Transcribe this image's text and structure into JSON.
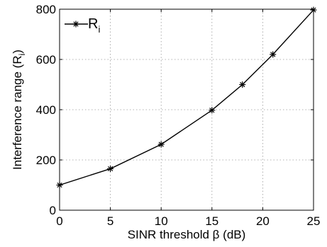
{
  "chart_data": {
    "type": "line",
    "title": "",
    "xlabel": "SINR threshold β (dB)",
    "ylabel": "Interference range (R",
    "ylabel_subscript": "i",
    "ylabel_suffix": ")",
    "xlim": [
      0,
      25
    ],
    "ylim": [
      0,
      800
    ],
    "xticks": [
      0,
      5,
      10,
      15,
      20,
      25
    ],
    "yticks": [
      0,
      200,
      400,
      600,
      800
    ],
    "grid": true,
    "legend_position": "top-left",
    "series": [
      {
        "name": "R",
        "name_subscript": "i",
        "marker": "asterisk",
        "color": "#000000",
        "x": [
          0,
          5,
          10,
          15,
          18,
          21,
          25
        ],
        "y": [
          100,
          165,
          262,
          398,
          500,
          620,
          797
        ]
      }
    ]
  }
}
